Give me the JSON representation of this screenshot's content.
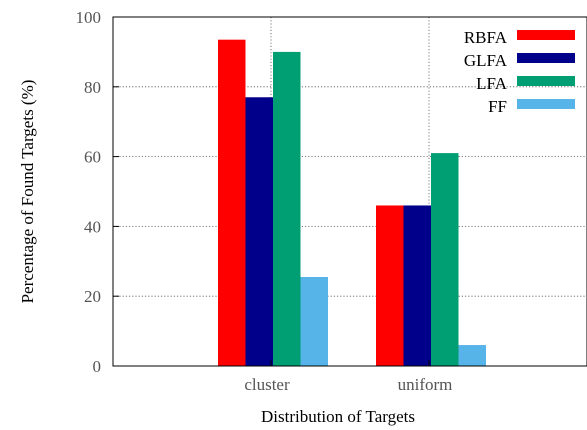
{
  "chart_data": {
    "type": "bar",
    "xlabel": "Distribution of Targets",
    "ylabel": "Percentage of Found Targets (%)",
    "ylim": [
      0,
      100
    ],
    "yticks": [
      0,
      20,
      40,
      60,
      80,
      100
    ],
    "categories": [
      "cluster",
      "uniform"
    ],
    "grid": true,
    "legend_position": "top-right",
    "series": [
      {
        "name": "RBFA",
        "color": "#ff0000",
        "values": [
          93.5,
          46
        ]
      },
      {
        "name": "GLFA",
        "color": "#00008b",
        "values": [
          77,
          46
        ]
      },
      {
        "name": "LFA",
        "color": "#009e73",
        "values": [
          90,
          61
        ]
      },
      {
        "name": "FF",
        "color": "#56b4e9",
        "values": [
          25.5,
          6
        ]
      }
    ]
  }
}
